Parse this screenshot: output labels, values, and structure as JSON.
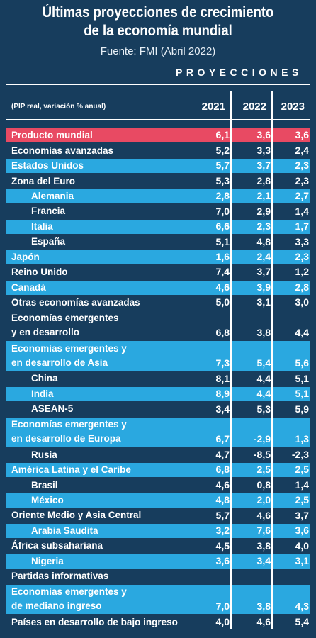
{
  "header": {
    "title": [
      "Últimas proyecciones de crecimiento",
      "de la economía mundial"
    ],
    "source": "Fuente: FMI (Abril 2022)",
    "band": "PROYECCIONES"
  },
  "table": {
    "note": "(PIP real, variación % anual)",
    "columns": [
      "2021",
      "2022",
      "2023"
    ],
    "rows": [
      {
        "label": [
          "Producto mundial"
        ],
        "values": [
          "6,1",
          "3,6",
          "3,6"
        ]
      },
      {
        "label": [
          "Economías avanzadas"
        ],
        "values": [
          "5,2",
          "3,3",
          "2,4"
        ]
      },
      {
        "label": [
          "Estados Unidos"
        ],
        "values": [
          "5,7",
          "3,7",
          "2,3"
        ]
      },
      {
        "label": [
          "Zona del Euro"
        ],
        "values": [
          "5,3",
          "2,8",
          "2,3"
        ]
      },
      {
        "label": [
          "Alemania"
        ],
        "values": [
          "2,8",
          "2,1",
          "2,7"
        ]
      },
      {
        "label": [
          "Francia"
        ],
        "values": [
          "7,0",
          "2,9",
          "1,4"
        ]
      },
      {
        "label": [
          "Italia"
        ],
        "values": [
          "6,6",
          "2,3",
          "1,7"
        ]
      },
      {
        "label": [
          "España"
        ],
        "values": [
          "5,1",
          "4,8",
          "3,3"
        ]
      },
      {
        "label": [
          "Japón"
        ],
        "values": [
          "1,6",
          "2,4",
          "2,3"
        ]
      },
      {
        "label": [
          "Reino Unido"
        ],
        "values": [
          "7,4",
          "3,7",
          "1,2"
        ]
      },
      {
        "label": [
          "Canadá"
        ],
        "values": [
          "4,6",
          "3,9",
          "2,8"
        ]
      },
      {
        "label": [
          "Otras economías avanzadas"
        ],
        "values": [
          "5,0",
          "3,1",
          "3,0"
        ]
      },
      {
        "label": [
          "Economías emergentes",
          "y en desarrollo"
        ],
        "values": [
          "6,8",
          "3,8",
          "4,4"
        ]
      },
      {
        "label": [
          "Economías emergentes y",
          "en desarrollo de Asia"
        ],
        "values": [
          "7,3",
          "5,4",
          "5,6"
        ]
      },
      {
        "label": [
          "China"
        ],
        "values": [
          "8,1",
          "4,4",
          "5,1"
        ]
      },
      {
        "label": [
          "India"
        ],
        "values": [
          "8,9",
          "4,4",
          "5,1"
        ]
      },
      {
        "label": [
          "ASEAN-5"
        ],
        "values": [
          "3,4",
          "5,3",
          "5,9"
        ]
      },
      {
        "label": [
          "Economías emergentes y",
          "en desarrollo de Europa"
        ],
        "values": [
          "6,7",
          "-2,9",
          "1,3"
        ]
      },
      {
        "label": [
          "Rusia"
        ],
        "values": [
          "4,7",
          "-8,5",
          "-2,3"
        ]
      },
      {
        "label": [
          "América Latina y el Caribe"
        ],
        "values": [
          "6,8",
          "2,5",
          "2,5"
        ]
      },
      {
        "label": [
          "Brasil"
        ],
        "values": [
          "4,6",
          "0,8",
          "1,4"
        ]
      },
      {
        "label": [
          "México"
        ],
        "values": [
          "4,8",
          "2,0",
          "2,5"
        ]
      },
      {
        "label": [
          "Oriente Medio y Asia Central"
        ],
        "values": [
          "5,7",
          "4,6",
          "3,7"
        ]
      },
      {
        "label": [
          "Arabia Saudita"
        ],
        "values": [
          "3,2",
          "7,6",
          "3,6"
        ]
      },
      {
        "label": [
          "África subsahariana"
        ],
        "values": [
          "4,5",
          "3,8",
          "4,0"
        ]
      },
      {
        "label": [
          "Nigeria"
        ],
        "values": [
          "3,6",
          "3,4",
          "3,1"
        ]
      },
      {
        "label": [
          "Partidas informativas"
        ]
      },
      {
        "label": [
          "Economías emergentes y",
          "de mediano ingreso"
        ],
        "values": [
          "7,0",
          "3,8",
          "4,3"
        ]
      },
      {
        "label": [
          "Países en desarrollo de bajo ingreso"
        ],
        "values": [
          "4,0",
          "4,6",
          "5,4"
        ]
      }
    ]
  }
}
